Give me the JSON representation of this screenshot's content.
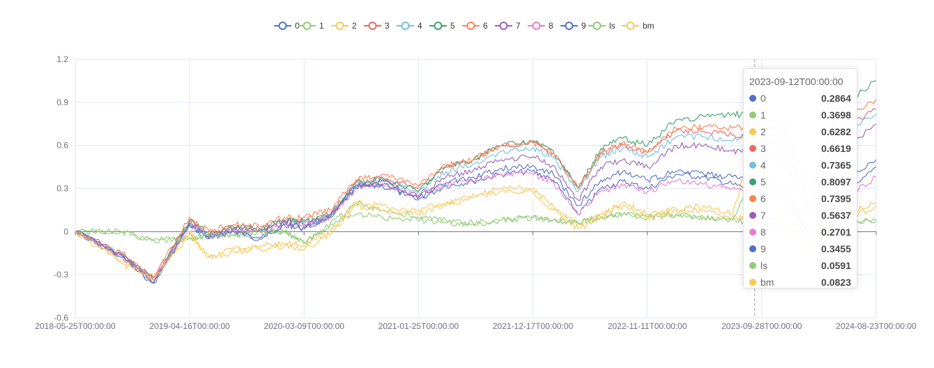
{
  "chart_data": {
    "type": "line",
    "x_ticks": [
      "2018-05-25T00:00:00",
      "2019-04-16T00:00:00",
      "2020-03-09T00:00:00",
      "2021-01-25T00:00:00",
      "2021-12-17T00:00:00",
      "2022-11-11T00:00:00",
      "2023-09-28T00:00:00",
      "2024-08-23T00:00:00"
    ],
    "y_ticks": [
      "1.2",
      "0.9",
      "0.6",
      "0.3",
      "0",
      "-0.3",
      "-0.6"
    ],
    "ylim": [
      -0.6,
      1.2
    ],
    "grid": true,
    "legend_position": "top-center",
    "x": [
      "2018-05-25",
      "2018-10-05",
      "2019-01-03",
      "2019-04-16",
      "2019-06-10",
      "2019-08-20",
      "2019-11-01",
      "2020-01-10",
      "2020-03-09",
      "2020-05-20",
      "2020-08-01",
      "2020-10-15",
      "2021-01-25",
      "2021-04-15",
      "2021-07-01",
      "2021-09-20",
      "2021-12-17",
      "2022-02-15",
      "2022-04-27",
      "2022-07-01",
      "2022-09-01",
      "2022-11-11",
      "2023-01-31",
      "2023-04-20",
      "2023-07-10",
      "2023-09-12",
      "2023-12-01",
      "2024-02-20",
      "2024-05-10",
      "2024-08-23"
    ],
    "series": [
      {
        "name": "0",
        "color": "#5470c6",
        "values": [
          0,
          -0.18,
          -0.36,
          0.05,
          -0.05,
          0,
          -0.05,
          0.05,
          0.02,
          0.1,
          0.3,
          0.32,
          0.22,
          0.32,
          0.35,
          0.4,
          0.42,
          0.36,
          0.12,
          0.3,
          0.35,
          0.3,
          0.4,
          0.38,
          0.33,
          0.2864,
          0.25,
          -0.05,
          0.2,
          0.45
        ]
      },
      {
        "name": "1",
        "color": "#91cc75",
        "values": [
          0,
          0,
          -0.06,
          -0.05,
          -0.02,
          -0.03,
          0,
          0,
          -0.08,
          0.05,
          0.2,
          0.15,
          0.1,
          0.08,
          0.06,
          0.08,
          0.1,
          0.08,
          0.06,
          0.1,
          0.12,
          0.1,
          0.12,
          0.1,
          0.08,
          0.3698,
          0.05,
          -0.02,
          0.05,
          0.08
        ]
      },
      {
        "name": "2",
        "color": "#fac858",
        "values": [
          0,
          -0.2,
          -0.32,
          0,
          -0.18,
          -0.12,
          -0.1,
          -0.08,
          -0.1,
          0,
          0.2,
          0.18,
          0.15,
          0.2,
          0.26,
          0.3,
          0.3,
          0.18,
          0.05,
          0.12,
          0.2,
          0.12,
          0.16,
          0.18,
          0.12,
          0.6282,
          0.1,
          -0.12,
          0.1,
          0.2
        ]
      },
      {
        "name": "3",
        "color": "#ee6666",
        "values": [
          0,
          -0.15,
          -0.32,
          0.08,
          -0.02,
          0.03,
          0.02,
          0.08,
          0.08,
          0.12,
          0.34,
          0.38,
          0.3,
          0.45,
          0.5,
          0.6,
          0.62,
          0.55,
          0.3,
          0.55,
          0.6,
          0.55,
          0.7,
          0.7,
          0.67,
          0.6619,
          0.6,
          0.2,
          0.7,
          0.85
        ]
      },
      {
        "name": "4",
        "color": "#73c0de",
        "values": [
          0,
          -0.16,
          -0.34,
          0.07,
          -0.03,
          0.02,
          0.01,
          0.07,
          0.06,
          0.11,
          0.33,
          0.36,
          0.27,
          0.42,
          0.47,
          0.56,
          0.58,
          0.52,
          0.28,
          0.52,
          0.58,
          0.52,
          0.66,
          0.66,
          0.63,
          0.7365,
          0.58,
          0.18,
          0.66,
          0.82
        ]
      },
      {
        "name": "5",
        "color": "#3ba272",
        "values": [
          0,
          -0.16,
          -0.34,
          0.08,
          -0.02,
          0.03,
          0.02,
          0.08,
          0.07,
          0.12,
          0.34,
          0.37,
          0.28,
          0.45,
          0.5,
          0.6,
          0.63,
          0.56,
          0.3,
          0.58,
          0.65,
          0.6,
          0.78,
          0.8,
          0.82,
          0.8097,
          0.75,
          0.3,
          0.85,
          1.05
        ]
      },
      {
        "name": "6",
        "color": "#fc8452",
        "values": [
          0,
          -0.15,
          -0.32,
          0.1,
          0,
          0.05,
          0.04,
          0.1,
          0.1,
          0.15,
          0.36,
          0.4,
          0.32,
          0.46,
          0.5,
          0.6,
          0.62,
          0.55,
          0.3,
          0.55,
          0.62,
          0.55,
          0.72,
          0.73,
          0.72,
          0.7395,
          0.68,
          0.25,
          0.75,
          0.92
        ]
      },
      {
        "name": "7",
        "color": "#9a60b4",
        "values": [
          0,
          -0.16,
          -0.35,
          0.06,
          -0.03,
          0.02,
          0.01,
          0.07,
          0.05,
          0.1,
          0.32,
          0.35,
          0.25,
          0.38,
          0.42,
          0.5,
          0.52,
          0.46,
          0.22,
          0.45,
          0.5,
          0.45,
          0.6,
          0.6,
          0.56,
          0.5637,
          0.5,
          0.12,
          0.55,
          0.75
        ]
      },
      {
        "name": "8",
        "color": "#ea7ccc",
        "values": [
          0,
          -0.17,
          -0.35,
          0.05,
          -0.04,
          0.01,
          0,
          0.06,
          0.04,
          0.1,
          0.3,
          0.33,
          0.24,
          0.33,
          0.36,
          0.4,
          0.4,
          0.35,
          0.12,
          0.28,
          0.32,
          0.28,
          0.35,
          0.33,
          0.3,
          0.2701,
          0.25,
          -0.05,
          0.2,
          0.38
        ]
      },
      {
        "name": "9",
        "color": "#5470c6",
        "values": [
          0,
          -0.17,
          -0.36,
          0.05,
          -0.05,
          0,
          -0.04,
          0.05,
          0.03,
          0.1,
          0.31,
          0.33,
          0.23,
          0.34,
          0.38,
          0.44,
          0.46,
          0.4,
          0.18,
          0.36,
          0.42,
          0.36,
          0.42,
          0.4,
          0.38,
          0.3455,
          0.3,
          -0.02,
          0.3,
          0.5
        ]
      },
      {
        "name": "ls",
        "color": "#91cc75",
        "values": [
          0,
          0,
          -0.06,
          -0.05,
          -0.02,
          -0.03,
          0,
          0,
          -0.08,
          0.05,
          0.12,
          0.1,
          0.08,
          0.06,
          0.05,
          0.08,
          0.1,
          0.08,
          0.06,
          0.1,
          0.12,
          0.1,
          0.12,
          0.1,
          0.08,
          0.0591,
          0.05,
          0.02,
          0.05,
          0.08
        ]
      },
      {
        "name": "bm",
        "color": "#fac858",
        "values": [
          0,
          -0.22,
          -0.34,
          -0.02,
          -0.18,
          -0.14,
          -0.12,
          -0.1,
          -0.12,
          -0.02,
          0.18,
          0.15,
          0.12,
          0.18,
          0.24,
          0.28,
          0.28,
          0.15,
          0.02,
          0.1,
          0.18,
          0.1,
          0.14,
          0.15,
          0.1,
          0.0823,
          0.08,
          -0.15,
          0.05,
          0.18
        ]
      }
    ],
    "pointer_x": "2023-09-12",
    "tooltip": {
      "title": "2023-09-12T00:00:00",
      "rows": [
        {
          "name": "0",
          "value": "0.2864",
          "color": "#5470c6"
        },
        {
          "name": "1",
          "value": "0.3698",
          "color": "#91cc75"
        },
        {
          "name": "2",
          "value": "0.6282",
          "color": "#fac858"
        },
        {
          "name": "3",
          "value": "0.6619",
          "color": "#ee6666"
        },
        {
          "name": "4",
          "value": "0.7365",
          "color": "#73c0de"
        },
        {
          "name": "5",
          "value": "0.8097",
          "color": "#3ba272"
        },
        {
          "name": "6",
          "value": "0.7395",
          "color": "#fc8452"
        },
        {
          "name": "7",
          "value": "0.5637",
          "color": "#9a60b4"
        },
        {
          "name": "8",
          "value": "0.2701",
          "color": "#ea7ccc"
        },
        {
          "name": "9",
          "value": "0.3455",
          "color": "#5470c6"
        },
        {
          "name": "ls",
          "value": "0.0591",
          "color": "#91cc75"
        },
        {
          "name": "bm",
          "value": "0.0823",
          "color": "#fac858"
        }
      ]
    }
  }
}
